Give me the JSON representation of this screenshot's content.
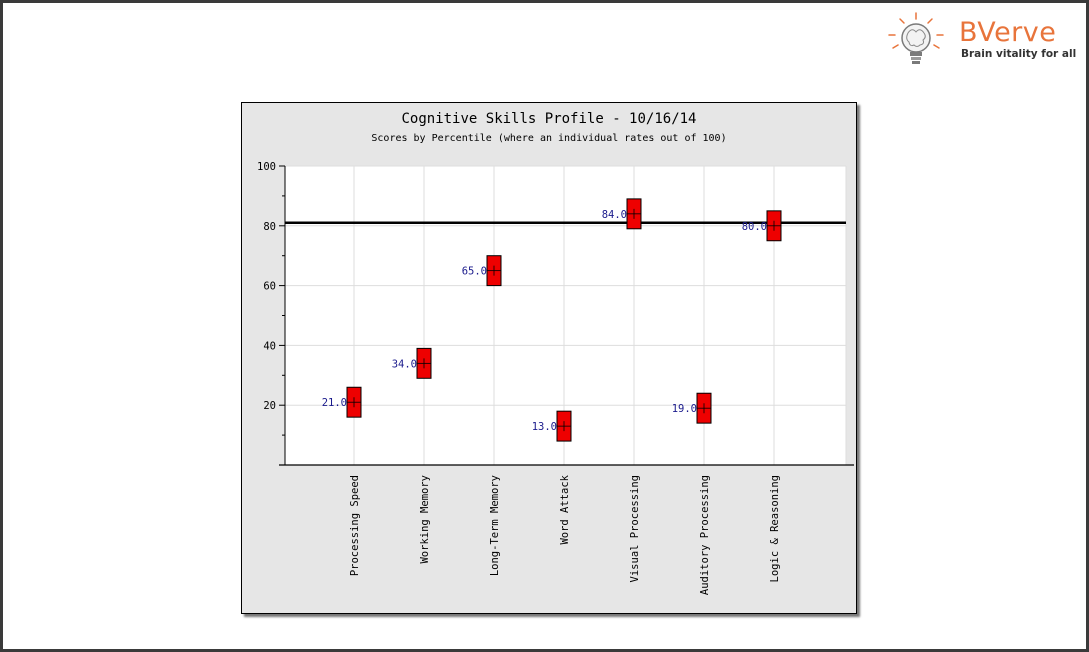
{
  "brand": {
    "name": "BVerve",
    "tagline": "Brain vitality for all",
    "accent": "#e8743b"
  },
  "chart_data": {
    "type": "scatter",
    "title": "Cognitive Skills Profile - 10/16/14",
    "subtitle": "Scores by Percentile (where an individual rates out of 100)",
    "xlabel": "",
    "ylabel": "",
    "ylim": [
      0,
      100
    ],
    "yticks": [
      "20",
      "40",
      "60",
      "80",
      "100"
    ],
    "grid": true,
    "reference_line": 81,
    "marker_color": "#ee0000",
    "categories": [
      "Processing Speed",
      "Working Memory",
      "Long-Term Memory",
      "Word Attack",
      "Visual Processing",
      "Auditory Processing",
      "Logic & Reasoning"
    ],
    "values": [
      21,
      34,
      65,
      13,
      84,
      19,
      80
    ],
    "data_labels": [
      "21.0",
      "34.0",
      "65.0",
      "13.0",
      "84.0",
      "19.0",
      "80.0"
    ],
    "bar_low": [
      16,
      29,
      60,
      8,
      79,
      14,
      75
    ],
    "bar_high": [
      26,
      39,
      70,
      18,
      89,
      24,
      85
    ]
  }
}
